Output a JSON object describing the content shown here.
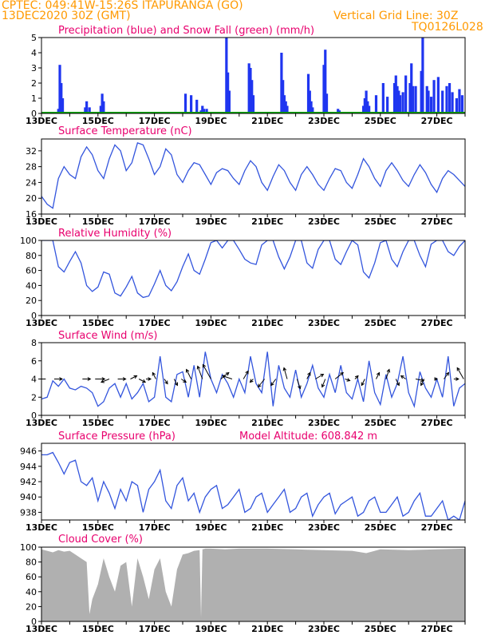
{
  "header": {
    "line1": "CPTEC:   049:41W-15:26S   ITAPURANGA (GO)",
    "line2": "13DEC2020  30Z (GMT)",
    "grid_note": "Vertical Grid Line: 30Z",
    "code": "TQ0126L028"
  },
  "x_day_labels": [
    "13DEC",
    "15DEC",
    "17DEC",
    "19DEC",
    "21DEC",
    "23DEC",
    "25DEC",
    "27DEC"
  ],
  "colors": {
    "line": "#3355dd",
    "bar": "#1f35f0",
    "snow": "#00aa00",
    "cloud": "#b0b0b0",
    "title": "#e8006e",
    "header": "#ff9900"
  },
  "chart_data": [
    {
      "type": "bar",
      "title": "Precipitation (blue) and Snow Fall (green) (mm/h)",
      "ylim": [
        0,
        5
      ],
      "yticks": [
        "0",
        "1",
        "2",
        "3",
        "4",
        "5"
      ],
      "x_range_days": [
        13,
        28
      ],
      "series": [
        {
          "name": "Precipitation",
          "x_days": [
            13.6,
            13.65,
            13.7,
            13.75,
            14.55,
            14.6,
            14.7,
            15.1,
            15.15,
            15.2,
            16.8,
            17.85,
            18.1,
            18.3,
            18.5,
            18.65,
            18.7,
            18.75,
            18.85,
            19.55,
            19.6,
            19.65,
            20.35,
            20.4,
            20.45,
            20.5,
            21.5,
            21.55,
            21.6,
            21.65,
            21.7,
            22.45,
            22.5,
            22.55,
            22.6,
            23.0,
            23.05,
            23.1,
            23.5,
            23.55,
            24.4,
            24.45,
            24.5,
            24.55,
            24.6,
            24.85,
            25.1,
            25.25,
            25.5,
            25.55,
            25.6,
            25.65,
            25.7,
            25.8,
            25.9,
            26.05,
            26.1,
            26.15,
            26.25,
            26.45,
            26.5,
            26.65,
            26.7,
            26.8,
            26.9,
            27.05,
            27.2,
            27.35,
            27.45,
            27.55,
            27.7,
            27.8,
            27.9
          ],
          "values": [
            0.3,
            3.2,
            2.0,
            1.0,
            0.4,
            0.8,
            0.4,
            0.5,
            1.3,
            0.8,
            0.1,
            0.1,
            1.3,
            1.2,
            0.9,
            0.2,
            0.5,
            0.3,
            0.3,
            5.0,
            2.7,
            1.5,
            3.3,
            3.0,
            2.2,
            1.2,
            4.0,
            2.2,
            1.2,
            0.8,
            0.5,
            2.6,
            1.5,
            0.8,
            0.4,
            3.2,
            4.2,
            1.3,
            0.3,
            0.2,
            0.5,
            1.0,
            1.5,
            0.8,
            0.5,
            1.2,
            2.0,
            1.1,
            2.0,
            2.5,
            1.8,
            1.5,
            1.2,
            1.4,
            2.5,
            2.0,
            3.3,
            1.8,
            1.8,
            2.8,
            5.0,
            1.8,
            1.5,
            1.1,
            2.2,
            2.4,
            1.5,
            1.8,
            2.0,
            1.4,
            1.0,
            1.6,
            1.2
          ]
        },
        {
          "name": "Snow Fall",
          "x_days": [
            13.0,
            28.0
          ],
          "values": [
            0,
            0
          ]
        }
      ]
    },
    {
      "type": "line",
      "title": "Surface Temperature (nC)",
      "ylim": [
        16,
        35
      ],
      "yticks": [
        "16",
        "20",
        "24",
        "28",
        "32"
      ],
      "x_days": [
        13.0,
        13.2,
        13.4,
        13.6,
        13.8,
        14.0,
        14.2,
        14.4,
        14.6,
        14.8,
        15.0,
        15.2,
        15.4,
        15.6,
        15.8,
        16.0,
        16.2,
        16.4,
        16.6,
        16.8,
        17.0,
        17.2,
        17.4,
        17.6,
        17.8,
        18.0,
        18.2,
        18.4,
        18.6,
        18.8,
        19.0,
        19.2,
        19.4,
        19.6,
        19.8,
        20.0,
        20.2,
        20.4,
        20.6,
        20.8,
        21.0,
        21.2,
        21.4,
        21.6,
        21.8,
        22.0,
        22.2,
        22.4,
        22.6,
        22.8,
        23.0,
        23.2,
        23.4,
        23.6,
        23.8,
        24.0,
        24.2,
        24.4,
        24.6,
        24.8,
        25.0,
        25.2,
        25.4,
        25.6,
        25.8,
        26.0,
        26.2,
        26.4,
        26.6,
        26.8,
        27.0,
        27.2,
        27.4,
        27.6,
        27.8,
        28.0
      ],
      "values": [
        20.5,
        18.5,
        17.5,
        25.0,
        28.0,
        26.0,
        25.0,
        30.5,
        33.0,
        31.0,
        27.0,
        25.0,
        30.0,
        33.5,
        32.0,
        27.0,
        29.0,
        34.0,
        33.5,
        30.0,
        26.0,
        28.0,
        32.5,
        31.0,
        26.0,
        24.0,
        27.0,
        29.0,
        28.5,
        26.0,
        23.5,
        26.5,
        27.5,
        27.0,
        25.0,
        23.5,
        27.0,
        29.5,
        28.0,
        24.0,
        22.0,
        25.5,
        28.5,
        27.0,
        24.0,
        22.0,
        26.0,
        28.0,
        26.0,
        23.5,
        22.0,
        25.0,
        27.5,
        27.0,
        24.0,
        22.5,
        26.0,
        30.0,
        28.0,
        25.0,
        23.0,
        27.0,
        29.0,
        27.0,
        24.5,
        23.0,
        26.0,
        28.5,
        26.5,
        23.5,
        21.5,
        25.0,
        27.0,
        26.0,
        24.5,
        23.0
      ]
    },
    {
      "type": "line",
      "title": "Relative Humidity (%)",
      "ylim": [
        0,
        100
      ],
      "yticks": [
        "0",
        "20",
        "40",
        "60",
        "80",
        "100"
      ],
      "x_days": [
        13.0,
        13.2,
        13.4,
        13.6,
        13.8,
        14.0,
        14.2,
        14.4,
        14.6,
        14.8,
        15.0,
        15.2,
        15.4,
        15.6,
        15.8,
        16.0,
        16.2,
        16.4,
        16.6,
        16.8,
        17.0,
        17.2,
        17.4,
        17.6,
        17.8,
        18.0,
        18.2,
        18.4,
        18.6,
        18.8,
        19.0,
        19.2,
        19.4,
        19.6,
        19.8,
        20.0,
        20.2,
        20.4,
        20.6,
        20.8,
        21.0,
        21.2,
        21.4,
        21.6,
        21.8,
        22.0,
        22.2,
        22.4,
        22.6,
        22.8,
        23.0,
        23.2,
        23.4,
        23.6,
        23.8,
        24.0,
        24.2,
        24.4,
        24.6,
        24.8,
        25.0,
        25.2,
        25.4,
        25.6,
        25.8,
        26.0,
        26.2,
        26.4,
        26.6,
        26.8,
        27.0,
        27.2,
        27.4,
        27.6,
        27.8,
        28.0
      ],
      "values": [
        100,
        100,
        100,
        65,
        58,
        72,
        85,
        70,
        40,
        32,
        38,
        58,
        55,
        30,
        26,
        38,
        52,
        30,
        24,
        26,
        42,
        60,
        40,
        33,
        45,
        65,
        82,
        60,
        55,
        75,
        97,
        100,
        90,
        100,
        100,
        88,
        75,
        70,
        68,
        94,
        100,
        100,
        78,
        62,
        78,
        100,
        100,
        70,
        63,
        88,
        100,
        100,
        75,
        68,
        85,
        100,
        94,
        58,
        50,
        70,
        97,
        100,
        75,
        65,
        85,
        100,
        100,
        80,
        65,
        95,
        100,
        100,
        85,
        80,
        92,
        100
      ]
    },
    {
      "type": "line",
      "title": "Surface Wind (m/s)",
      "ylim": [
        0,
        8
      ],
      "yticks": [
        "0",
        "2",
        "4",
        "6",
        "8"
      ],
      "x_days": [
        13.0,
        13.2,
        13.4,
        13.6,
        13.8,
        14.0,
        14.2,
        14.4,
        14.6,
        14.8,
        15.0,
        15.2,
        15.4,
        15.6,
        15.8,
        16.0,
        16.2,
        16.4,
        16.6,
        16.8,
        17.0,
        17.2,
        17.4,
        17.6,
        17.8,
        18.0,
        18.2,
        18.4,
        18.6,
        18.8,
        19.0,
        19.2,
        19.4,
        19.6,
        19.8,
        20.0,
        20.2,
        20.4,
        20.6,
        20.8,
        21.0,
        21.2,
        21.4,
        21.6,
        21.8,
        22.0,
        22.2,
        22.4,
        22.6,
        22.8,
        23.0,
        23.2,
        23.4,
        23.6,
        23.8,
        24.0,
        24.2,
        24.4,
        24.6,
        24.8,
        25.0,
        25.2,
        25.4,
        25.6,
        25.8,
        26.0,
        26.2,
        26.4,
        26.6,
        26.8,
        27.0,
        27.2,
        27.4,
        27.6,
        27.8,
        28.0
      ],
      "values": [
        1.8,
        2.0,
        3.8,
        3.2,
        4.0,
        3.0,
        2.8,
        3.2,
        3.0,
        2.5,
        1.0,
        1.5,
        3.0,
        3.5,
        2.0,
        3.5,
        1.8,
        2.5,
        3.5,
        1.5,
        2.0,
        6.5,
        2.0,
        1.5,
        4.5,
        4.8,
        2.0,
        5.5,
        2.0,
        7.0,
        4.0,
        2.5,
        4.5,
        3.5,
        2.0,
        4.0,
        2.5,
        6.5,
        3.5,
        2.5,
        7.0,
        1.0,
        5.5,
        3.0,
        2.0,
        5.0,
        2.0,
        3.5,
        5.5,
        3.0,
        2.0,
        4.5,
        2.5,
        5.5,
        2.5,
        1.8,
        4.0,
        1.5,
        6.0,
        2.5,
        1.2,
        4.5,
        2.0,
        3.5,
        6.5,
        2.5,
        1.0,
        4.8,
        3.0,
        2.0,
        4.0,
        2.0,
        6.5,
        1.0,
        3.0,
        3.5
      ],
      "arrows": {
        "x_days": [
          13.15,
          13.45,
          14.45,
          14.9,
          15.4,
          15.7,
          16.15,
          16.45,
          16.7,
          17.05,
          17.35,
          17.7,
          17.95,
          18.3,
          18.7,
          19.0,
          19.35,
          19.75,
          20.15,
          20.5,
          20.9,
          21.3,
          21.7,
          22.05,
          22.4,
          22.7,
          23.05,
          23.4,
          23.75,
          24.1,
          24.45,
          24.85,
          25.2,
          25.55,
          25.9,
          26.25,
          26.55,
          26.9,
          27.25,
          27.6,
          27.95
        ],
        "dx": [
          -12,
          10,
          10,
          12,
          -10,
          10,
          8,
          8,
          6,
          -4,
          4,
          4,
          6,
          -6,
          -6,
          -10,
          10,
          -12,
          6,
          -4,
          -8,
          -6,
          -4,
          4,
          4,
          10,
          -4,
          10,
          6,
          4,
          -4,
          4,
          4,
          4,
          -6,
          10,
          -4,
          4,
          6,
          6,
          -8
        ],
        "dy": [
          0,
          0,
          0,
          0,
          4,
          0,
          -4,
          4,
          0,
          -8,
          6,
          8,
          4,
          -12,
          -16,
          -18,
          -8,
          -4,
          -10,
          4,
          10,
          8,
          -14,
          12,
          -8,
          -6,
          10,
          -8,
          2,
          -4,
          8,
          -8,
          -12,
          8,
          -4,
          2,
          8,
          0,
          -8,
          0,
          -14
        ]
      }
    },
    {
      "type": "line",
      "title": "Surface Pressure (hPa)",
      "annotation": "Model Altitude: 608.842  m",
      "ylim": [
        937,
        947
      ],
      "yticks": [
        "938",
        "940",
        "942",
        "944",
        "946"
      ],
      "x_days": [
        13.0,
        13.2,
        13.4,
        13.6,
        13.8,
        14.0,
        14.2,
        14.4,
        14.6,
        14.8,
        15.0,
        15.2,
        15.4,
        15.6,
        15.8,
        16.0,
        16.2,
        16.4,
        16.6,
        16.8,
        17.0,
        17.2,
        17.4,
        17.6,
        17.8,
        18.0,
        18.2,
        18.4,
        18.6,
        18.8,
        19.0,
        19.2,
        19.4,
        19.6,
        19.8,
        20.0,
        20.2,
        20.4,
        20.6,
        20.8,
        21.0,
        21.2,
        21.4,
        21.6,
        21.8,
        22.0,
        22.2,
        22.4,
        22.6,
        22.8,
        23.0,
        23.2,
        23.4,
        23.6,
        23.8,
        24.0,
        24.2,
        24.4,
        24.6,
        24.8,
        25.0,
        25.2,
        25.4,
        25.6,
        25.8,
        26.0,
        26.2,
        26.4,
        26.6,
        26.8,
        27.0,
        27.2,
        27.4,
        27.6,
        27.8,
        28.0
      ],
      "values": [
        945.5,
        945.5,
        945.8,
        944.5,
        943.0,
        944.5,
        944.8,
        942.0,
        941.5,
        942.5,
        939.5,
        942.0,
        940.5,
        938.5,
        941.0,
        939.5,
        942.0,
        941.5,
        938.0,
        941.0,
        942.0,
        943.5,
        939.5,
        938.5,
        941.5,
        942.5,
        939.5,
        940.5,
        938.0,
        940.0,
        941.0,
        941.5,
        938.5,
        939.0,
        940.0,
        941.0,
        938.0,
        938.5,
        940.0,
        940.5,
        938.0,
        939.0,
        940.0,
        941.0,
        938.0,
        938.5,
        940.0,
        940.5,
        937.5,
        939.0,
        940.0,
        940.5,
        937.8,
        939.0,
        939.5,
        940.0,
        937.5,
        938.0,
        939.5,
        940.0,
        938.0,
        938.0,
        939.0,
        940.0,
        937.5,
        938.0,
        939.5,
        940.5,
        937.5,
        937.5,
        938.5,
        939.5,
        937.0,
        937.5,
        937.0,
        939.5
      ]
    },
    {
      "type": "area",
      "title": "Cloud Cover (%)",
      "ylim": [
        0,
        100
      ],
      "yticks": [
        "0",
        "20",
        "40",
        "60",
        "80",
        "100"
      ],
      "x_days": [
        13.0,
        13.2,
        13.4,
        13.6,
        13.8,
        14.0,
        14.2,
        14.4,
        14.6,
        14.7,
        14.8,
        15.0,
        15.2,
        15.4,
        15.6,
        15.8,
        16.0,
        16.2,
        16.4,
        16.6,
        16.8,
        17.0,
        17.2,
        17.4,
        17.6,
        17.8,
        18.0,
        18.2,
        18.4,
        18.6,
        18.65,
        18.7,
        18.8,
        19.0,
        19.5,
        20.0,
        21.0,
        22.0,
        23.0,
        24.0,
        24.5,
        25.0,
        26.0,
        27.0,
        28.0
      ],
      "values": [
        97,
        95,
        93,
        96,
        94,
        95,
        90,
        85,
        80,
        10,
        30,
        50,
        85,
        60,
        40,
        75,
        80,
        20,
        85,
        60,
        30,
        70,
        85,
        40,
        20,
        70,
        90,
        92,
        95,
        96,
        5,
        97,
        98,
        98,
        97,
        98,
        98,
        97,
        96,
        95,
        92,
        97,
        96,
        97,
        98
      ]
    }
  ]
}
